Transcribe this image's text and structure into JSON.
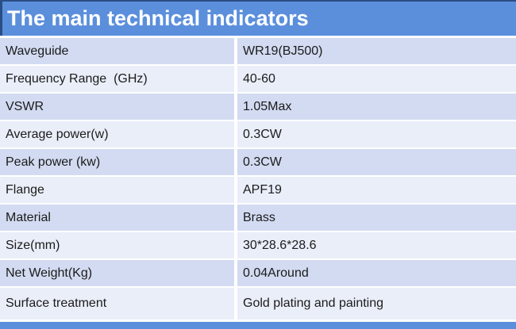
{
  "header": {
    "title": "The main technical indicators"
  },
  "table": {
    "rows": [
      {
        "label": "Waveguide",
        "value": "WR19(BJ500)"
      },
      {
        "label": "Frequency Range  (GHz)",
        "value": "40-60"
      },
      {
        "label": "VSWR",
        "value": "1.05Max"
      },
      {
        "label": "Average power(w)",
        "value": "0.3CW"
      },
      {
        "label": "Peak power (kw)",
        "value": "0.3CW"
      },
      {
        "label": "Flange",
        "value": "APF19"
      },
      {
        "label": "Material",
        "value": "Brass"
      },
      {
        "label": "Size(mm)",
        "value": "30*28.6*28.6"
      },
      {
        "label": "Net Weight(Kg)",
        "value": "0.04Around"
      },
      {
        "label": "Surface treatment",
        "value": "Gold plating and painting"
      }
    ]
  },
  "colors": {
    "header_blue": "#5b8fdc",
    "header_border": "#2a4d85",
    "row_dark": "#d2dbf1",
    "row_light": "#e9eef9",
    "divider_white": "#ffffff",
    "text": "#1b1b1b",
    "footer_blue": "#5b8fdc"
  }
}
